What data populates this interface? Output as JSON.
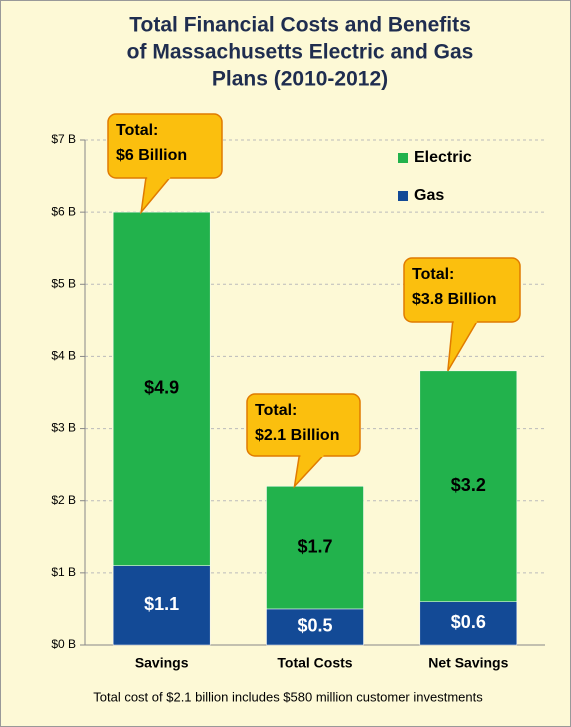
{
  "chart_data": {
    "type": "stacked_bar",
    "title": [
      "Total Financial Costs and Benefits",
      "of Massachusetts Electric and Gas",
      "Plans (2010-2012)"
    ],
    "categories": [
      "Savings",
      "Total Costs",
      "Net Savings"
    ],
    "series": [
      {
        "name": "Gas",
        "color": "#134a96",
        "values": [
          1.1,
          0.5,
          0.6
        ],
        "value_labels": [
          "$1.1",
          "$0.5",
          "$0.6"
        ]
      },
      {
        "name": "Electric",
        "color": "#22b24c",
        "values": [
          4.9,
          1.7,
          3.2
        ],
        "value_labels": [
          "$4.9",
          "$1.7",
          "$3.2"
        ]
      }
    ],
    "ylim": [
      0,
      7
    ],
    "yticks": [
      {
        "value": 0,
        "label": "$0 B"
      },
      {
        "value": 1,
        "label": "$1 B"
      },
      {
        "value": 2,
        "label": "$2 B"
      },
      {
        "value": 3,
        "label": "$3 B"
      },
      {
        "value": 4,
        "label": "$4 B"
      },
      {
        "value": 5,
        "label": "$5 B"
      },
      {
        "value": 6,
        "label": "$6 B"
      },
      {
        "value": 7,
        "label": "$7 B"
      }
    ],
    "grid": true,
    "legend": "upper right",
    "annotations": [
      [
        "Total:",
        "$6 Billion"
      ],
      [
        "Total:",
        "$2.1 Billion"
      ],
      [
        "Total:",
        "$3.8 Billion"
      ]
    ],
    "footnote": "Total cost of $2.1 billion includes $580 million customer investments"
  }
}
